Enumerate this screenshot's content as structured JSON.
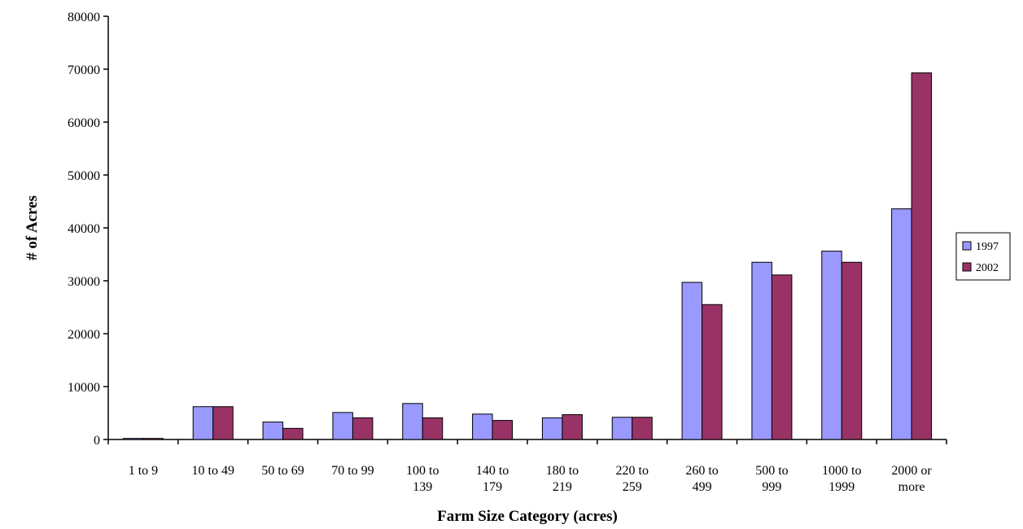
{
  "chart_data": {
    "type": "bar",
    "title": "",
    "xlabel": "Farm Size Category (acres)",
    "ylabel": "# of Acres",
    "ylim": [
      0,
      80000
    ],
    "yticks": [
      "0",
      "10000",
      "20000",
      "30000",
      "40000",
      "50000",
      "60000",
      "70000",
      "80000"
    ],
    "categories": [
      [
        "1 to 9"
      ],
      [
        "10 to 49"
      ],
      [
        "50 to 69"
      ],
      [
        "70 to 99"
      ],
      [
        "100 to",
        "139"
      ],
      [
        "140 to",
        "179"
      ],
      [
        "180 to",
        "219"
      ],
      [
        "220 to",
        "259"
      ],
      [
        "260 to",
        "499"
      ],
      [
        "500 to",
        "999"
      ],
      [
        "1000 to",
        "1999"
      ],
      [
        "2000 or",
        "more"
      ]
    ],
    "series": [
      {
        "name": "1997",
        "color": "#9999ff",
        "values": [
          200,
          6200,
          3300,
          5100,
          6800,
          4800,
          4100,
          4200,
          29700,
          33500,
          35600,
          43600
        ]
      },
      {
        "name": "2002",
        "color": "#993366",
        "values": [
          200,
          6200,
          2100,
          4100,
          4100,
          3600,
          4700,
          4200,
          25500,
          31100,
          33500,
          69300
        ]
      }
    ],
    "grid": false,
    "legend_position": "right"
  }
}
